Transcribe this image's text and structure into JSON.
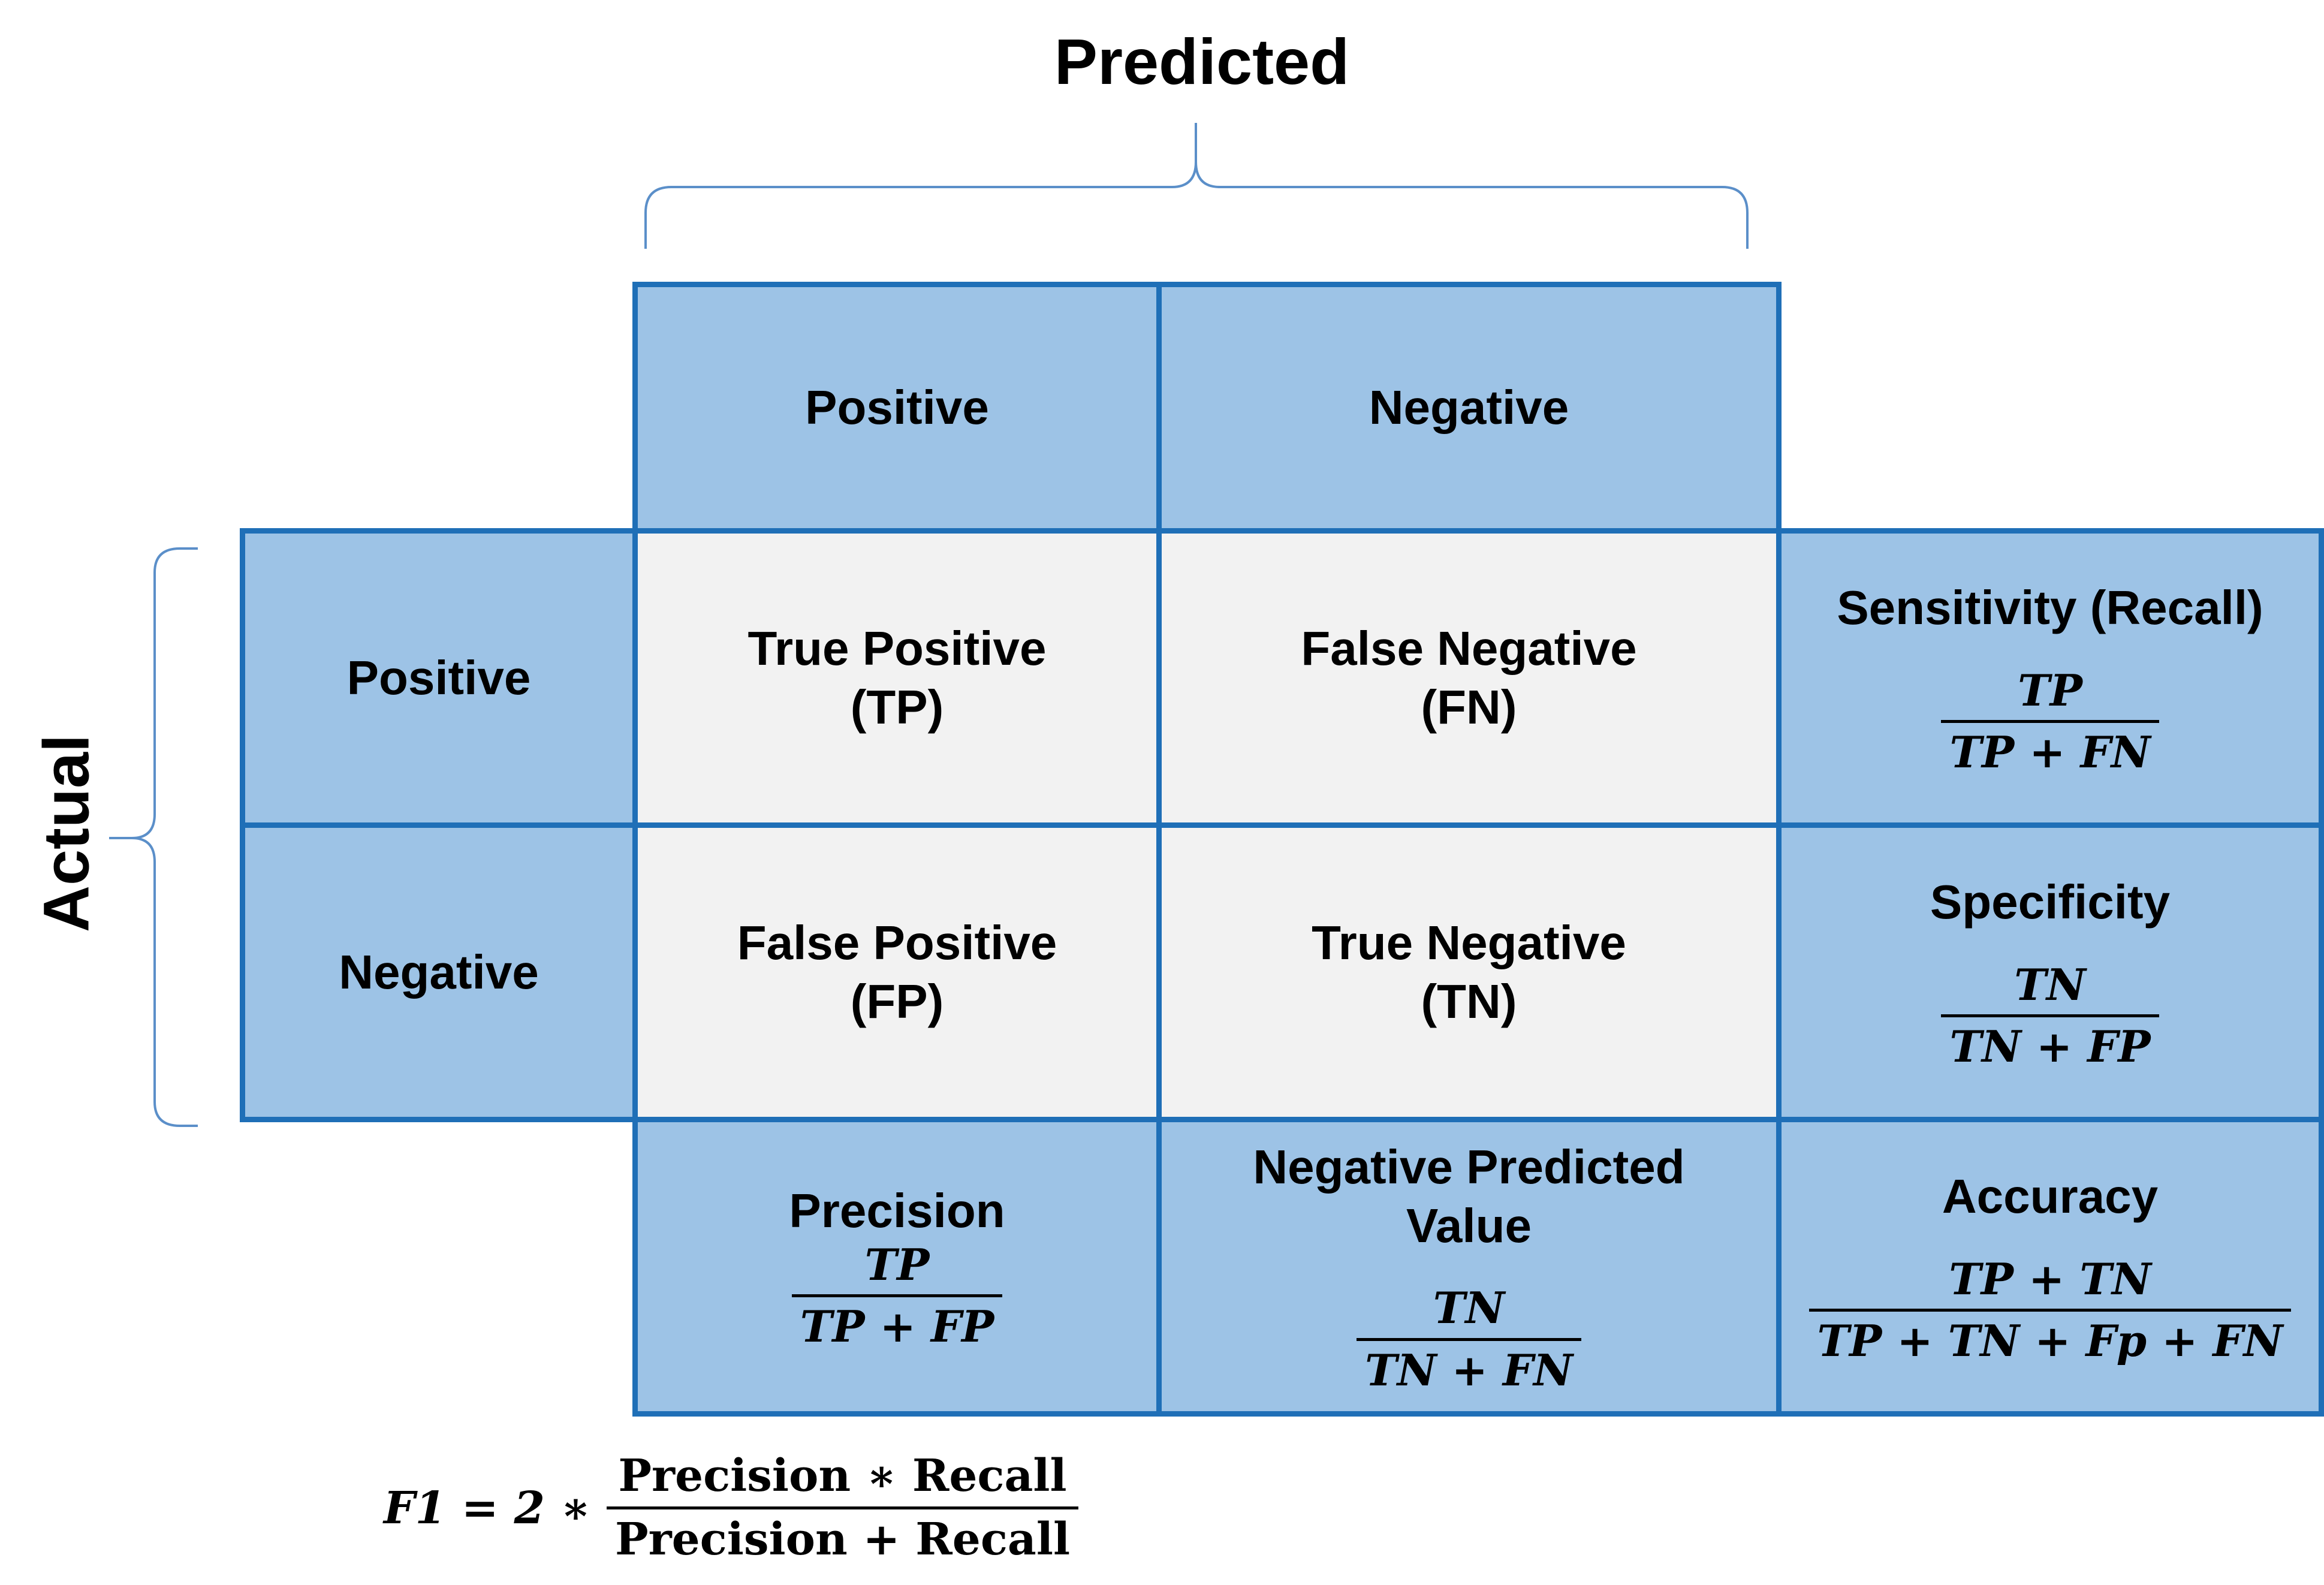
{
  "axis": {
    "predicted": "Predicted",
    "actual": "Actual"
  },
  "columns": {
    "positive": "Positive",
    "negative": "Negative"
  },
  "rows": {
    "positive": "Positive",
    "negative": "Negative"
  },
  "matrix": {
    "tp_line1": "True Positive",
    "tp_line2": "(TP)",
    "fn_line1": "False Negative",
    "fn_line2": "(FN)",
    "fp_line1": "False Positive",
    "fp_line2": "(FP)",
    "tn_line1": "True Negative",
    "tn_line2": "(TN)"
  },
  "metrics": {
    "sensitivity": {
      "title": "Sensitivity (Recall)",
      "numerator": "TP",
      "denominator": "TP + FN"
    },
    "specificity": {
      "title": "Specificity",
      "numerator": "TN",
      "denominator": "TN + FP"
    },
    "precision": {
      "title": "Precision",
      "numerator": "TP",
      "denominator": "TP + FP"
    },
    "npv": {
      "title_line1": "Negative Predicted",
      "title_line2": "Value",
      "numerator": "TN",
      "denominator": "TN + FN"
    },
    "accuracy": {
      "title": "Accuracy",
      "numerator": "TP + TN",
      "denominator": "TP + TN + Fp + FN"
    }
  },
  "f1": {
    "lhs": "F1 = 2 ∗",
    "numerator": "Precision ∗ Recall",
    "denominator": "Precision + Recall"
  },
  "colors": {
    "cell_blue": "#9dc3e6",
    "cell_grey": "#f2f2f2",
    "border": "#1f6fb7",
    "brace": "#5b8fc9"
  }
}
